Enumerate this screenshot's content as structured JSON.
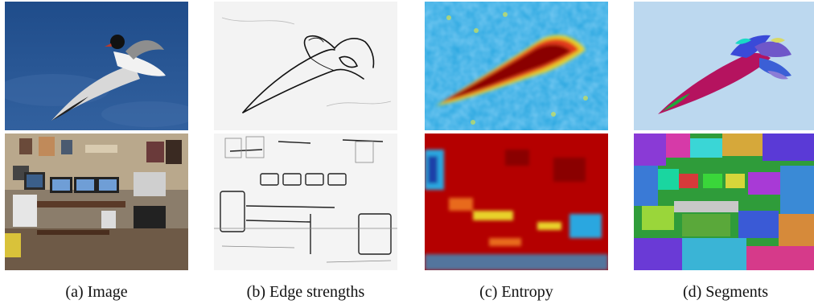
{
  "figure": {
    "columns": [
      {
        "caption": "(a) Image"
      },
      {
        "caption": "(b) Edge strengths"
      },
      {
        "caption": "(c) Entropy"
      },
      {
        "caption": "(d) Segments"
      }
    ],
    "rows": [
      {
        "subject": "seagull"
      },
      {
        "subject": "office-room"
      }
    ]
  }
}
